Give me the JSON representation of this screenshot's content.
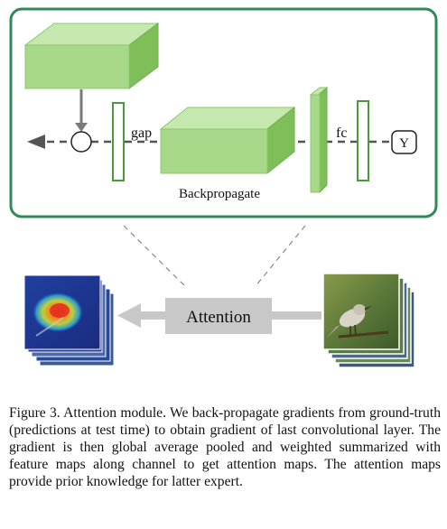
{
  "diagram": {
    "labels": {
      "gap": "gap",
      "fc": "fc",
      "output": "Y",
      "backprop": "Backpropagate",
      "attention": "Attention"
    },
    "colors": {
      "panel_border": "#2e8b57",
      "box_fill": "#a8d98a",
      "box_stroke": "#7fbf5a",
      "arrow": "#7a7a7a",
      "attention_block": "#c8c8c8"
    }
  },
  "caption": {
    "text": "Figure 3. Attention module.  We back-propagate gradients from ground-truth (predictions at test time) to obtain gradient of last convolutional layer.  The gradient is then global average pooled and weighted summarized with feature maps along channel to get attention maps.  The attention maps provide prior knowledge for latter expert."
  }
}
